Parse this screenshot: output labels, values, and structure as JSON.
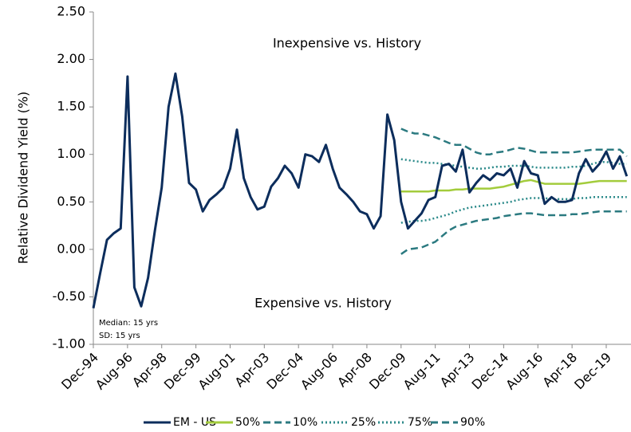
{
  "chart_data": {
    "type": "line",
    "ylabel": "Relative Dividend Yield (%)",
    "annotations": [
      "Inexpensive vs. History",
      "Expensive vs. History",
      "Median: 15 yrs",
      "SD: 15 yrs"
    ],
    "categories": [
      "Dec-94",
      null,
      null,
      null,
      null,
      "Aug-96",
      null,
      null,
      null,
      null,
      "Apr-98",
      null,
      null,
      null,
      null,
      "Dec-99",
      null,
      null,
      null,
      null,
      "Aug-01",
      null,
      null,
      null,
      null,
      "Apr-03",
      null,
      null,
      null,
      null,
      "Dec-04",
      null,
      null,
      null,
      null,
      "Aug-06",
      null,
      null,
      null,
      null,
      "Apr-08",
      null,
      null,
      null,
      null,
      "Dec-09",
      null,
      null,
      null,
      null,
      "Aug-11",
      null,
      null,
      null,
      null,
      "Apr-13",
      null,
      null,
      null,
      null,
      "Dec-14",
      null,
      null,
      null,
      null,
      "Aug-16",
      null,
      null,
      null,
      null,
      "Apr-18",
      null,
      null,
      null,
      null,
      "Dec-19",
      null,
      null,
      null
    ],
    "ylim": [
      -1.0,
      2.5
    ],
    "yticks": [
      {
        "value": -1.0,
        "label": "-1.00"
      },
      {
        "value": -0.5,
        "label": "-0.50"
      },
      {
        "value": 0,
        "label": "0.00"
      },
      {
        "value": 0.5,
        "label": "0.50"
      },
      {
        "value": 1.0,
        "label": "1.00"
      },
      {
        "value": 1.5,
        "label": "1.50"
      },
      {
        "value": 2.0,
        "label": "2.00"
      },
      {
        "value": 2.5,
        "label": "2.50"
      }
    ],
    "grid": false,
    "legend": "bottom",
    "series": [
      {
        "name": "EM - US",
        "color": "#0c2d5c",
        "dash": "solid",
        "values": [
          -0.62,
          -0.25,
          0.1,
          0.17,
          0.22,
          1.82,
          -0.4,
          -0.6,
          -0.3,
          0.2,
          0.65,
          1.5,
          1.85,
          1.4,
          0.7,
          0.63,
          0.4,
          0.52,
          0.58,
          0.65,
          0.85,
          1.26,
          0.75,
          0.55,
          0.42,
          0.45,
          0.66,
          0.75,
          0.88,
          0.8,
          0.65,
          1.0,
          0.98,
          0.92,
          1.1,
          0.85,
          0.65,
          0.58,
          0.5,
          0.4,
          0.37,
          0.22,
          0.35,
          1.42,
          1.15,
          0.5,
          0.22,
          0.3,
          0.38,
          0.52,
          0.55,
          0.88,
          0.9,
          0.82,
          1.05,
          0.6,
          0.7,
          0.78,
          0.73,
          0.8,
          0.78,
          0.85,
          0.65,
          0.93,
          0.8,
          0.78,
          0.48,
          0.55,
          0.5,
          0.5,
          0.52,
          0.8,
          0.95,
          0.82,
          0.9,
          1.03,
          0.85,
          0.98,
          0.77
        ]
      },
      {
        "name": "50%",
        "color": "#a3cc3c",
        "dash": "solid",
        "values": [
          null,
          null,
          null,
          null,
          null,
          null,
          null,
          null,
          null,
          null,
          null,
          null,
          null,
          null,
          null,
          null,
          null,
          null,
          null,
          null,
          null,
          null,
          null,
          null,
          null,
          null,
          null,
          null,
          null,
          null,
          null,
          null,
          null,
          null,
          null,
          null,
          null,
          null,
          null,
          null,
          null,
          null,
          null,
          null,
          null,
          0.61,
          0.61,
          0.61,
          0.61,
          0.61,
          0.62,
          0.62,
          0.62,
          0.63,
          0.63,
          0.64,
          0.64,
          0.64,
          0.64,
          0.65,
          0.66,
          0.68,
          0.7,
          0.72,
          0.73,
          0.71,
          0.69,
          0.69,
          0.69,
          0.69,
          0.69,
          0.69,
          0.7,
          0.71,
          0.72,
          0.72,
          0.72,
          0.72,
          0.72
        ]
      },
      {
        "name": "10%",
        "color": "#2b7a80",
        "dash": "dashed",
        "values": [
          null,
          null,
          null,
          null,
          null,
          null,
          null,
          null,
          null,
          null,
          null,
          null,
          null,
          null,
          null,
          null,
          null,
          null,
          null,
          null,
          null,
          null,
          null,
          null,
          null,
          null,
          null,
          null,
          null,
          null,
          null,
          null,
          null,
          null,
          null,
          null,
          null,
          null,
          null,
          null,
          null,
          null,
          null,
          null,
          null,
          -0.05,
          0.0,
          0.01,
          0.02,
          0.05,
          0.08,
          0.14,
          0.2,
          0.24,
          0.26,
          0.28,
          0.3,
          0.31,
          0.32,
          0.33,
          0.35,
          0.36,
          0.37,
          0.38,
          0.38,
          0.37,
          0.36,
          0.36,
          0.36,
          0.36,
          0.37,
          0.37,
          0.38,
          0.39,
          0.4,
          0.4,
          0.4,
          0.4,
          0.4
        ]
      },
      {
        "name": "25%",
        "color": "#2b8a8a",
        "dash": "dotted",
        "values": [
          null,
          null,
          null,
          null,
          null,
          null,
          null,
          null,
          null,
          null,
          null,
          null,
          null,
          null,
          null,
          null,
          null,
          null,
          null,
          null,
          null,
          null,
          null,
          null,
          null,
          null,
          null,
          null,
          null,
          null,
          null,
          null,
          null,
          null,
          null,
          null,
          null,
          null,
          null,
          null,
          null,
          null,
          null,
          null,
          null,
          0.28,
          0.29,
          0.3,
          0.3,
          0.31,
          0.33,
          0.35,
          0.37,
          0.4,
          0.42,
          0.44,
          0.45,
          0.46,
          0.47,
          0.48,
          0.49,
          0.5,
          0.52,
          0.53,
          0.54,
          0.54,
          0.54,
          0.53,
          0.53,
          0.53,
          0.53,
          0.54,
          0.54,
          0.55,
          0.55,
          0.55,
          0.55,
          0.55,
          0.55
        ]
      },
      {
        "name": "75%",
        "color": "#2b8a8a",
        "dash": "dotted",
        "values": [
          null,
          null,
          null,
          null,
          null,
          null,
          null,
          null,
          null,
          null,
          null,
          null,
          null,
          null,
          null,
          null,
          null,
          null,
          null,
          null,
          null,
          null,
          null,
          null,
          null,
          null,
          null,
          null,
          null,
          null,
          null,
          null,
          null,
          null,
          null,
          null,
          null,
          null,
          null,
          null,
          null,
          null,
          null,
          null,
          null,
          0.95,
          0.94,
          0.93,
          0.92,
          0.91,
          0.91,
          0.9,
          0.89,
          0.88,
          0.87,
          0.86,
          0.85,
          0.85,
          0.86,
          0.87,
          0.87,
          0.88,
          0.88,
          0.88,
          0.87,
          0.86,
          0.86,
          0.86,
          0.86,
          0.86,
          0.87,
          0.87,
          0.88,
          0.9,
          0.92,
          0.92,
          0.91,
          0.9,
          0.9
        ]
      },
      {
        "name": "90%",
        "color": "#2b7a80",
        "dash": "dashed",
        "values": [
          null,
          null,
          null,
          null,
          null,
          null,
          null,
          null,
          null,
          null,
          null,
          null,
          null,
          null,
          null,
          null,
          null,
          null,
          null,
          null,
          null,
          null,
          null,
          null,
          null,
          null,
          null,
          null,
          null,
          null,
          null,
          null,
          null,
          null,
          null,
          null,
          null,
          null,
          null,
          null,
          null,
          null,
          null,
          null,
          null,
          1.27,
          1.24,
          1.22,
          1.22,
          1.2,
          1.18,
          1.15,
          1.12,
          1.1,
          1.1,
          1.06,
          1.02,
          1.0,
          1.0,
          1.02,
          1.03,
          1.05,
          1.07,
          1.06,
          1.04,
          1.02,
          1.02,
          1.02,
          1.02,
          1.02,
          1.02,
          1.03,
          1.04,
          1.05,
          1.05,
          1.05,
          1.05,
          1.05,
          0.98
        ]
      }
    ]
  }
}
